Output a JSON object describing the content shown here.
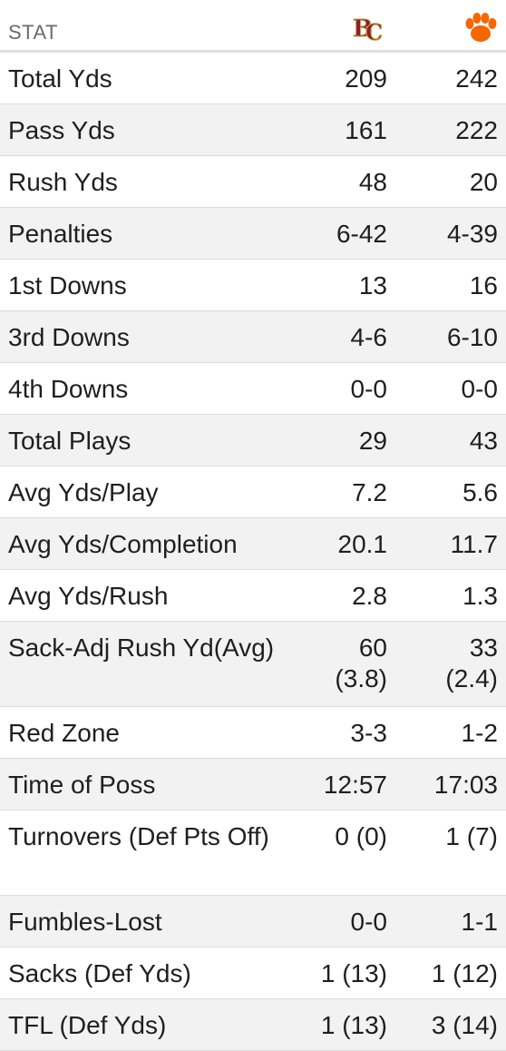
{
  "header": {
    "stat_label": "STAT",
    "team_a_logo": "boston-college-logo",
    "team_b_logo": "clemson-paw-logo"
  },
  "colors": {
    "team_a": "#8a1f2b",
    "team_b": "#f56600",
    "alt_row": "#f2f2f2"
  },
  "rows": [
    {
      "label": "Total Yds",
      "a": "209",
      "b": "242"
    },
    {
      "label": "Pass Yds",
      "a": "161",
      "b": "222"
    },
    {
      "label": "Rush Yds",
      "a": "48",
      "b": "20"
    },
    {
      "label": "Penalties",
      "a": "6-42",
      "b": "4-39"
    },
    {
      "label": "1st Downs",
      "a": "13",
      "b": "16"
    },
    {
      "label": "3rd Downs",
      "a": "4-6",
      "b": "6-10"
    },
    {
      "label": "4th Downs",
      "a": "0-0",
      "b": "0-0"
    },
    {
      "label": "Total Plays",
      "a": "29",
      "b": "43"
    },
    {
      "label": "Avg Yds/Play",
      "a": "7.2",
      "b": "5.6"
    },
    {
      "label": "Avg Yds/Completion",
      "a": "20.1",
      "b": "11.7"
    },
    {
      "label": "Avg Yds/Rush",
      "a": "2.8",
      "b": "1.3"
    },
    {
      "label": "Sack-Adj Rush Yd(Avg)",
      "a": "60 (3.8)",
      "b": "33 (2.4)"
    },
    {
      "label": "Red Zone",
      "a": "3-3",
      "b": "1-2"
    },
    {
      "label": "Time of Poss",
      "a": "12:57",
      "b": "17:03"
    },
    {
      "label": "Turnovers (Def Pts Off)",
      "a": "0 (0)",
      "b": "1 (7)"
    },
    {
      "label": "Fumbles-Lost",
      "a": "0-0",
      "b": "1-1"
    },
    {
      "label": "Sacks (Def Yds)",
      "a": "1 (13)",
      "b": "1 (12)"
    },
    {
      "label": "TFL (Def Yds)",
      "a": "1 (13)",
      "b": "3 (14)"
    }
  ]
}
